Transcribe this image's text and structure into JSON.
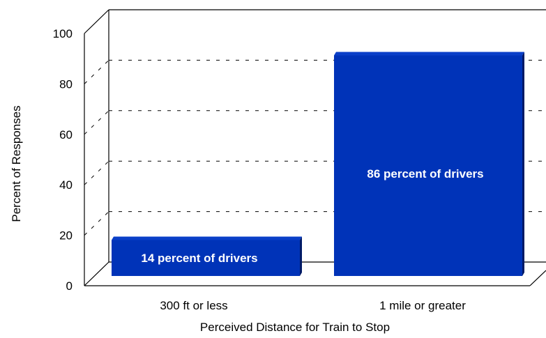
{
  "chart_data": {
    "type": "bar",
    "style": "3d",
    "categories": [
      "300 ft or less",
      "1 mile or greater"
    ],
    "values": [
      14,
      86
    ],
    "data_labels": [
      "14 percent of drivers",
      "86 percent of drivers"
    ],
    "title": "",
    "xlabel": "Perceived Distance for Train to Stop",
    "ylabel": "Percent of Responses",
    "ylim": [
      0,
      100
    ],
    "yticks": [
      0,
      20,
      40,
      60,
      80,
      100
    ],
    "grid": true,
    "legend": "none",
    "colors": {
      "bar_front": "#0033b8",
      "bar_top": "#0a3fc8",
      "bar_side": "#001a66"
    }
  }
}
